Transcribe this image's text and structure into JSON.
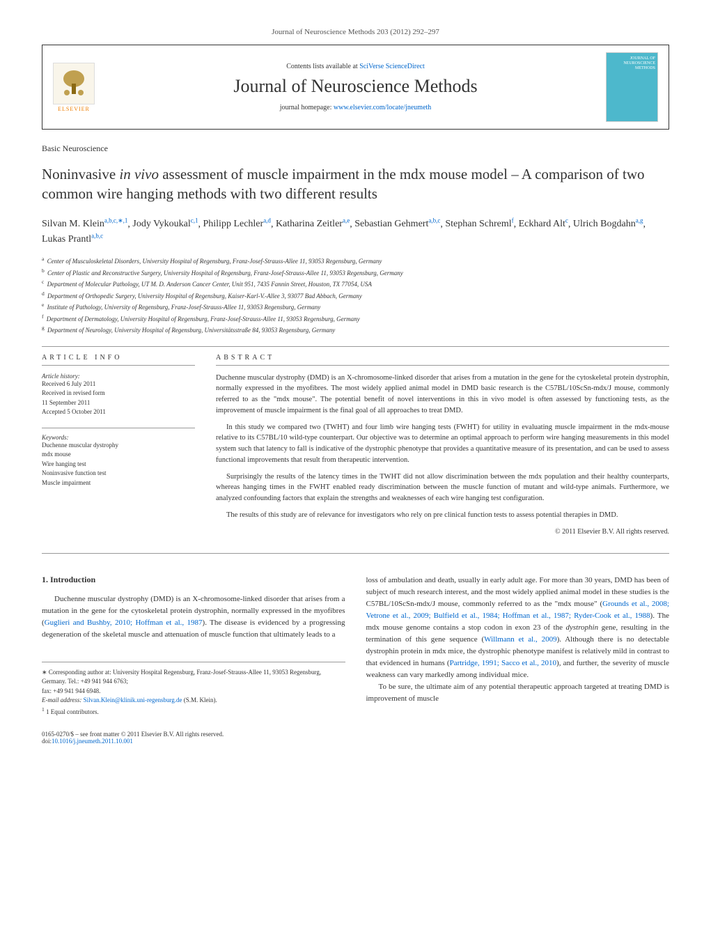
{
  "header": {
    "top_citation": "Journal of Neuroscience Methods 203 (2012) 292–297",
    "contents_prefix": "Contents lists available at ",
    "contents_link": "SciVerse ScienceDirect",
    "journal_name": "Journal of Neuroscience Methods",
    "homepage_prefix": "journal homepage: ",
    "homepage_url": "www.elsevier.com/locate/jneumeth",
    "elsevier_label": "ELSEVIER",
    "cover_line1": "JOURNAL OF",
    "cover_line2": "NEUROSCIENCE",
    "cover_line3": "METHODS"
  },
  "article": {
    "section": "Basic Neuroscience",
    "title": "Noninvasive in vivo assessment of muscle impairment in the mdx mouse model – A comparison of two common wire hanging methods with two different results",
    "authors_html": "Silvan M. Klein",
    "authors": [
      {
        "name": "Silvan M. Klein",
        "sup": "a,b,c,∗,1"
      },
      {
        "name": "Jody Vykoukal",
        "sup": "c,1"
      },
      {
        "name": "Philipp Lechler",
        "sup": "a,d"
      },
      {
        "name": "Katharina Zeitler",
        "sup": "a,e"
      },
      {
        "name": "Sebastian Gehmert",
        "sup": "a,b,c"
      },
      {
        "name": "Stephan Schreml",
        "sup": "f"
      },
      {
        "name": "Eckhard Alt",
        "sup": "c"
      },
      {
        "name": "Ulrich Bogdahn",
        "sup": "a,g"
      },
      {
        "name": "Lukas Prantl",
        "sup": "a,b,c"
      }
    ],
    "affiliations": [
      {
        "sup": "a",
        "text": "Center of Musculoskeletal Disorders, University Hospital of Regensburg, Franz-Josef-Strauss-Allee 11, 93053 Regensburg, Germany"
      },
      {
        "sup": "b",
        "text": "Center of Plastic and Reconstructive Surgery, University Hospital of Regensburg, Franz-Josef-Strauss-Allee 11, 93053 Regensburg, Germany"
      },
      {
        "sup": "c",
        "text": "Department of Molecular Pathology, UT M. D. Anderson Cancer Center, Unit 951, 7435 Fannin Street, Houston, TX 77054, USA"
      },
      {
        "sup": "d",
        "text": "Department of Orthopedic Surgery, University Hospital of Regensburg, Kaiser-Karl-V.-Allee 3, 93077 Bad Abbach, Germany"
      },
      {
        "sup": "e",
        "text": "Institute of Pathology, University of Regensburg, Franz-Josef-Strauss-Allee 11, 93053 Regensburg, Germany"
      },
      {
        "sup": "f",
        "text": "Department of Dermatology, University Hospital of Regensburg, Franz-Josef-Strauss-Allee 11, 93053 Regensburg, Germany"
      },
      {
        "sup": "g",
        "text": "Department of Neurology, University Hospital of Regensburg, Universitätsstraße 84, 93053 Regensburg, Germany"
      }
    ]
  },
  "info": {
    "heading": "article info",
    "history_label": "Article history:",
    "history": [
      "Received 6 July 2011",
      "Received in revised form",
      "11 September 2011",
      "Accepted 5 October 2011"
    ],
    "keywords_label": "Keywords:",
    "keywords": [
      "Duchenne muscular dystrophy",
      "mdx mouse",
      "Wire hanging test",
      "Noninvasive function test",
      "Muscle impairment"
    ]
  },
  "abstract": {
    "heading": "abstract",
    "paragraphs": [
      "Duchenne muscular dystrophy (DMD) is an X-chromosome-linked disorder that arises from a mutation in the gene for the cytoskeletal protein dystrophin, normally expressed in the myofibres. The most widely applied animal model in DMD basic research is the C57BL/10ScSn-mdx/J mouse, commonly referred to as the \"mdx mouse\". The potential benefit of novel interventions in this in vivo model is often assessed by functioning tests, as the improvement of muscle impairment is the final goal of all approaches to treat DMD.",
      "In this study we compared two (TWHT) and four limb wire hanging tests (FWHT) for utility in evaluating muscle impairment in the mdx-mouse relative to its C57BL/10 wild-type counterpart. Our objective was to determine an optimal approach to perform wire hanging measurements in this model system such that latency to fall is indicative of the dystrophic phenotype that provides a quantitative measure of its presentation, and can be used to assess functional improvements that result from therapeutic intervention.",
      "Surprisingly the results of the latency times in the TWHT did not allow discrimination between the mdx population and their healthy counterparts, whereas hanging times in the FWHT enabled ready discrimination between the muscle function of mutant and wild-type animals. Furthermore, we analyzed confounding factors that explain the strengths and weaknesses of each wire hanging test configuration.",
      "The results of this study are of relevance for investigators who rely on pre clinical function tests to assess potential therapies in DMD."
    ],
    "copyright": "© 2011 Elsevier B.V. All rights reserved."
  },
  "body": {
    "intro_heading": "1. Introduction",
    "intro_p1_a": "Duchenne muscular dystrophy (DMD) is an X-chromosome-linked disorder that arises from a mutation in the gene for the cytoskeletal protein dystrophin, normally expressed in the myofibres (",
    "intro_p1_link1": "Guglieri and Bushby, 2010; Hoffman et al., 1987",
    "intro_p1_b": "). The disease is evidenced by a progressing degeneration of the skeletal muscle and attenuation of muscle function that ultimately leads to a",
    "col2_p1_a": "loss of ambulation and death, usually in early adult age. For more than 30 years, DMD has been of subject of much research interest, and the most widely applied animal model in these studies is the C57BL/10ScSn-mdx/J mouse, commonly referred to as the \"mdx mouse\" (",
    "col2_p1_link1": "Grounds et al., 2008; Vetrone et al., 2009; Bulfield et al., 1984; Hoffman et al., 1987; Ryder-Cook et al., 1988",
    "col2_p1_b": "). The mdx mouse genome contains a stop codon in exon 23 of the ",
    "col2_p1_italic": "dystrophin",
    "col2_p1_c": " gene, resulting in the termination of this gene sequence (",
    "col2_p1_link2": "Willmann et al., 2009",
    "col2_p1_d": "). Although there is no detectable dystrophin protein in mdx mice, the dystrophic phenotype manifest is relatively mild in contrast to that evidenced in humans (",
    "col2_p1_link3": "Partridge, 1991; Sacco et al., 2010",
    "col2_p1_e": "), and further, the severity of muscle weakness can vary markedly among individual mice.",
    "col2_p2": "To be sure, the ultimate aim of any potential therapeutic approach targeted at treating DMD is improvement of muscle"
  },
  "footnotes": {
    "corresponding": "∗ Corresponding author at: University Hospital Regensburg, Franz-Josef-Strauss-Allee 11, 93053 Regensburg, Germany. Tel.: +49 941 944 6763;",
    "fax": "fax: +49 941 944 6948.",
    "email_label": "E-mail address: ",
    "email": "Silvan.Klein@klinik.uni-regensburg.de",
    "email_suffix": " (S.M. Klein).",
    "equal": "1 Equal contributors."
  },
  "footer": {
    "left_line1": "0165-0270/$ – see front matter © 2011 Elsevier B.V. All rights reserved.",
    "doi_prefix": "doi:",
    "doi": "10.1016/j.jneumeth.2011.10.001"
  },
  "colors": {
    "link": "#0066cc",
    "text": "#333333",
    "elsevier_orange": "#ee7d00",
    "cover_bg": "#4db8cc"
  }
}
